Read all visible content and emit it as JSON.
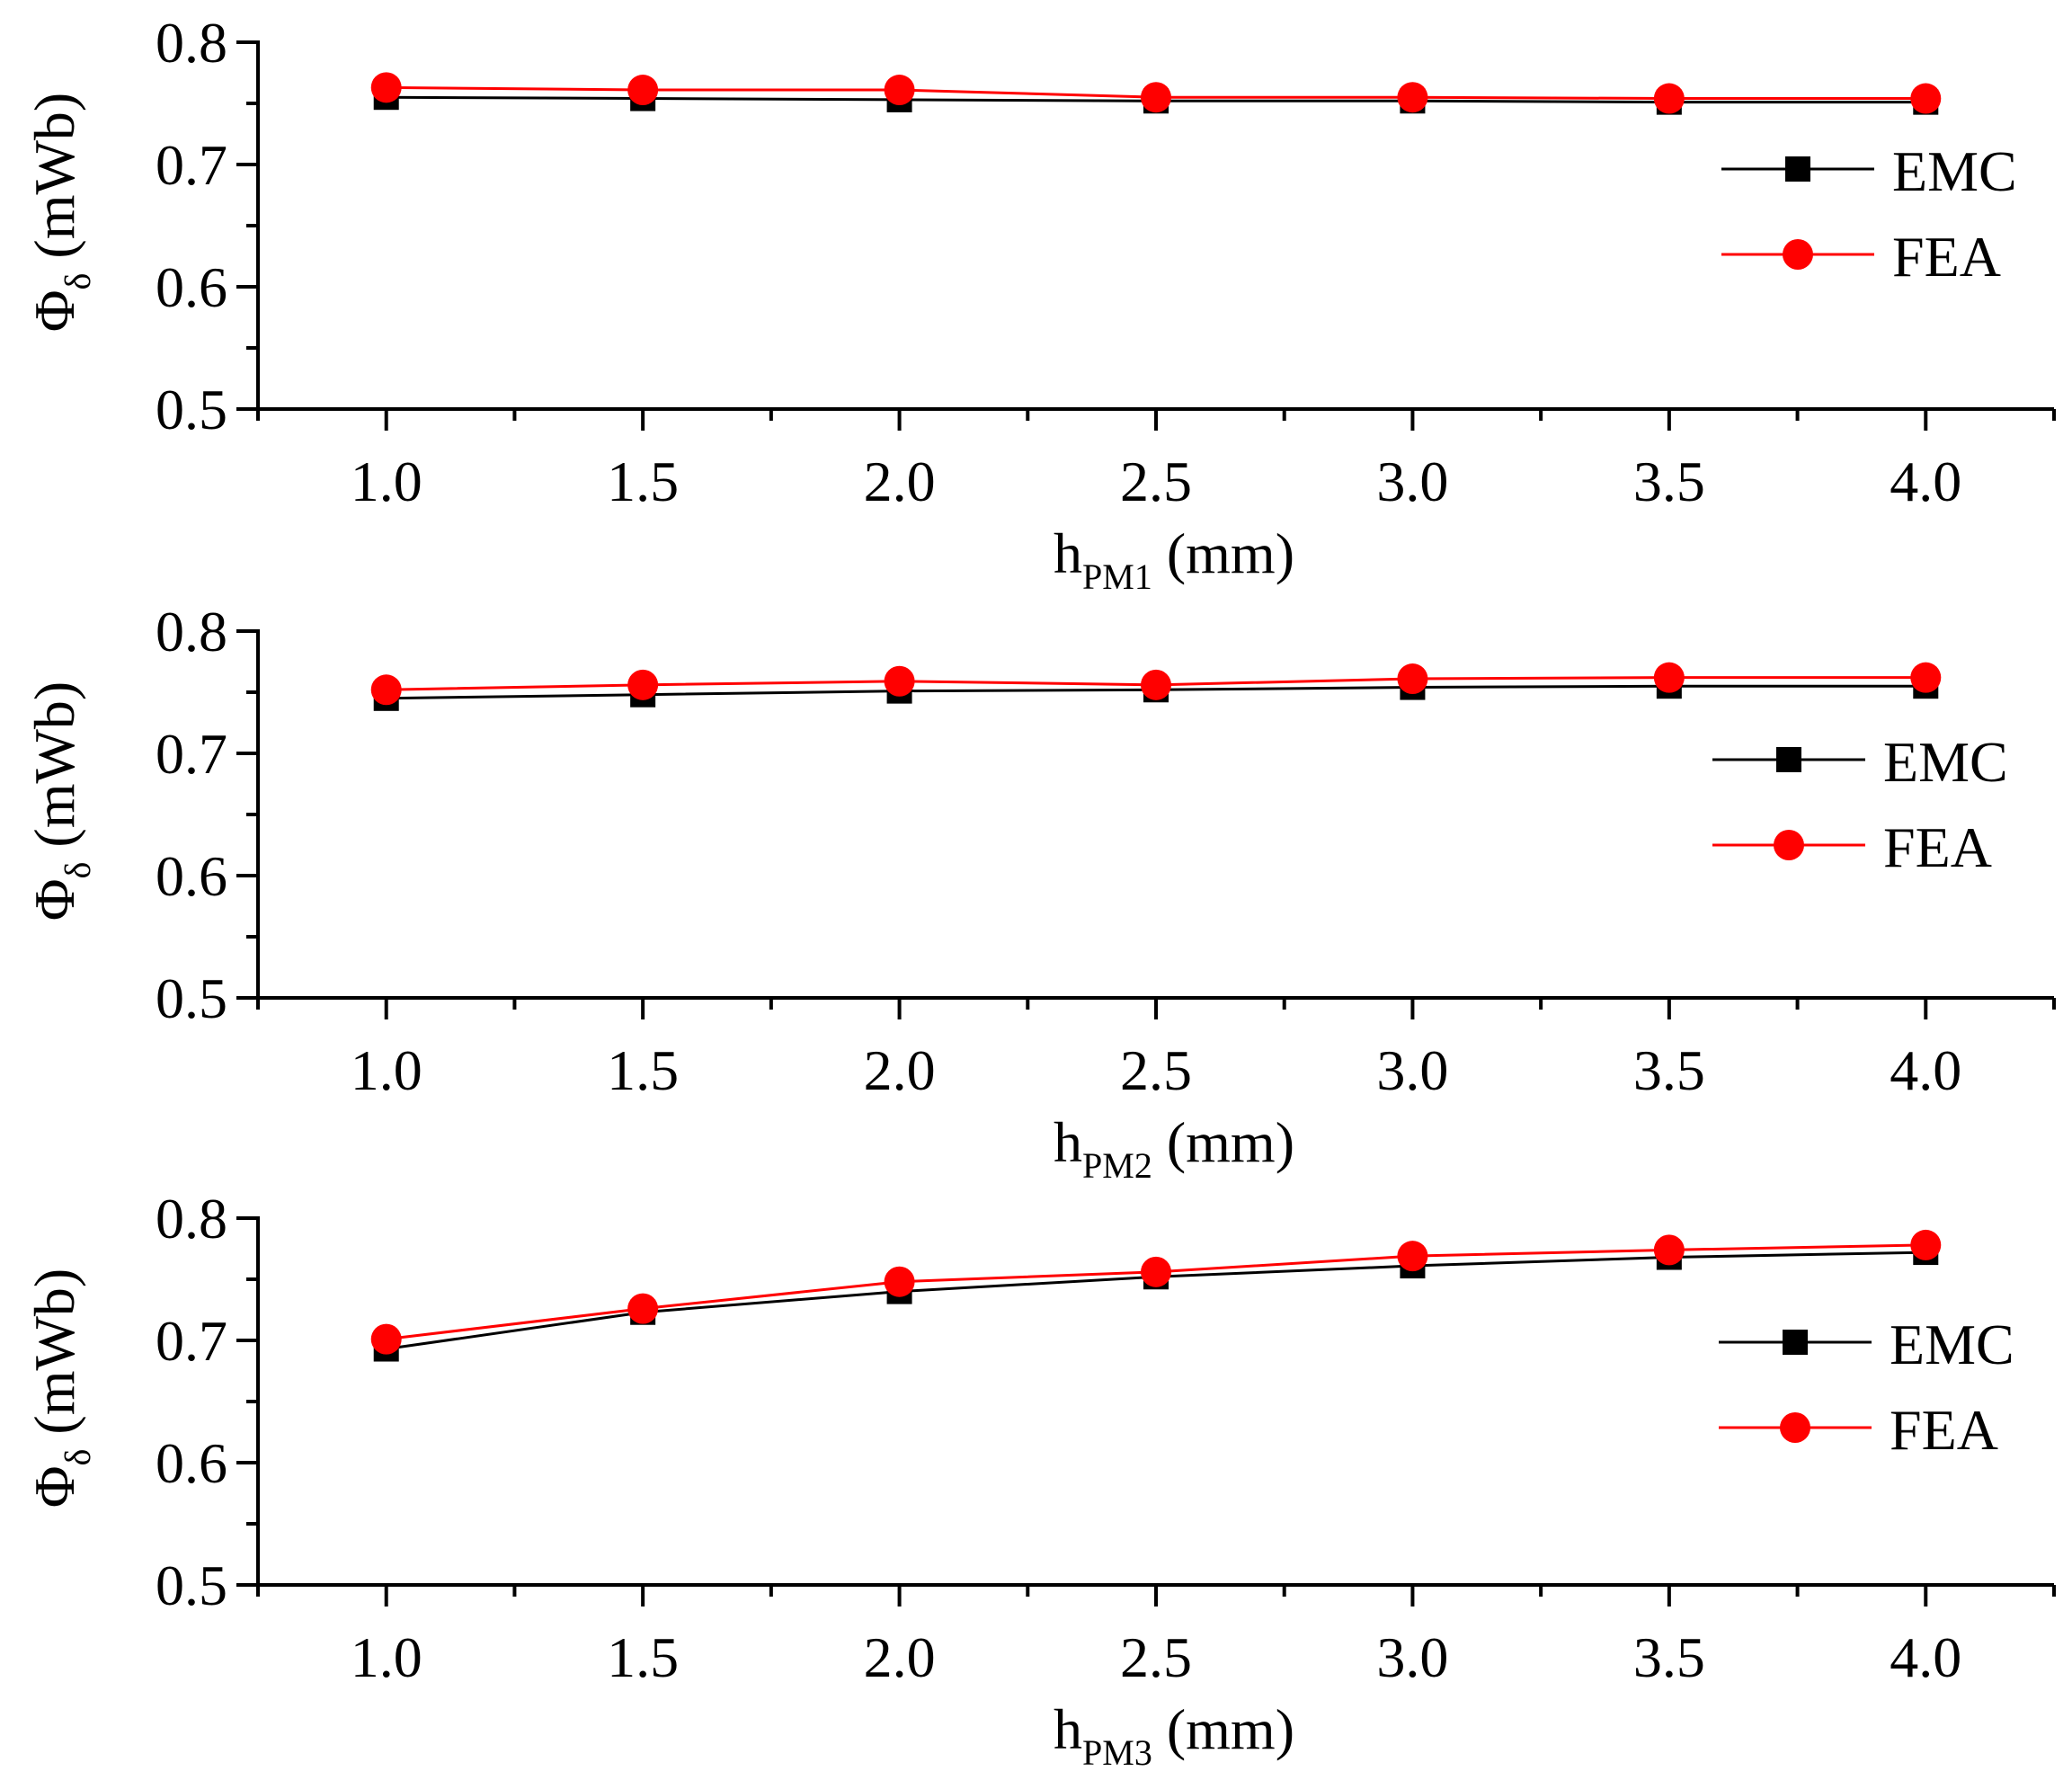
{
  "chart_data": [
    {
      "type": "line",
      "xlabel": {
        "main": "h",
        "sub": "PM1",
        "unit": " (mm)"
      },
      "ylabel": {
        "main": "Φ",
        "sub": "δ",
        "unit": " (mWb)"
      },
      "xlim": [
        0.75,
        4.25
      ],
      "ylim": [
        0.5,
        0.8
      ],
      "x_ticks": [
        "1.0",
        "1.5",
        "2.0",
        "2.5",
        "3.0",
        "3.5",
        "4.0"
      ],
      "y_ticks": [
        "0.5",
        "0.6",
        "0.7",
        "0.8"
      ],
      "x": [
        1.0,
        1.5,
        2.0,
        2.5,
        3.0,
        3.5,
        4.0
      ],
      "legend_position": "right",
      "series": [
        {
          "name": "EMC",
          "color": "#000000",
          "marker": "square",
          "values": [
            0.755,
            0.754,
            0.753,
            0.752,
            0.752,
            0.751,
            0.751
          ]
        },
        {
          "name": "FEA",
          "color": "#ff0000",
          "marker": "circle",
          "values": [
            0.763,
            0.761,
            0.761,
            0.755,
            0.755,
            0.754,
            0.754
          ]
        }
      ]
    },
    {
      "type": "line",
      "xlabel": {
        "main": "h",
        "sub": "PM2",
        "unit": " (mm)"
      },
      "ylabel": {
        "main": "Φ",
        "sub": "δ",
        "unit": " (mWb)"
      },
      "xlim": [
        0.75,
        4.25
      ],
      "ylim": [
        0.5,
        0.8
      ],
      "x_ticks": [
        "1.0",
        "1.5",
        "2.0",
        "2.5",
        "3.0",
        "3.5",
        "4.0"
      ],
      "y_ticks": [
        "0.5",
        "0.6",
        "0.7",
        "0.8"
      ],
      "x": [
        1.0,
        1.5,
        2.0,
        2.5,
        3.0,
        3.5,
        4.0
      ],
      "legend_position": "right",
      "series": [
        {
          "name": "EMC",
          "color": "#000000",
          "marker": "square",
          "values": [
            0.745,
            0.748,
            0.751,
            0.752,
            0.754,
            0.755,
            0.755
          ]
        },
        {
          "name": "FEA",
          "color": "#ff0000",
          "marker": "circle",
          "values": [
            0.752,
            0.756,
            0.759,
            0.756,
            0.761,
            0.762,
            0.762
          ]
        }
      ]
    },
    {
      "type": "line",
      "xlabel": {
        "main": "h",
        "sub": "PM3",
        "unit": " (mm)"
      },
      "ylabel": {
        "main": "Φ",
        "sub": "δ",
        "unit": " (mWb)"
      },
      "xlim": [
        0.75,
        4.25
      ],
      "ylim": [
        0.5,
        0.8
      ],
      "x_ticks": [
        "1.0",
        "1.5",
        "2.0",
        "2.5",
        "3.0",
        "3.5",
        "4.0"
      ],
      "y_ticks": [
        "0.5",
        "0.6",
        "0.7",
        "0.8"
      ],
      "x": [
        1.0,
        1.5,
        2.0,
        2.5,
        3.0,
        3.5,
        4.0
      ],
      "legend_position": "right",
      "series": [
        {
          "name": "EMC",
          "color": "#000000",
          "marker": "square",
          "values": [
            0.693,
            0.723,
            0.74,
            0.752,
            0.761,
            0.768,
            0.772
          ]
        },
        {
          "name": "FEA",
          "color": "#ff0000",
          "marker": "circle",
          "values": [
            0.701,
            0.726,
            0.748,
            0.756,
            0.769,
            0.774,
            0.778
          ]
        }
      ]
    }
  ]
}
